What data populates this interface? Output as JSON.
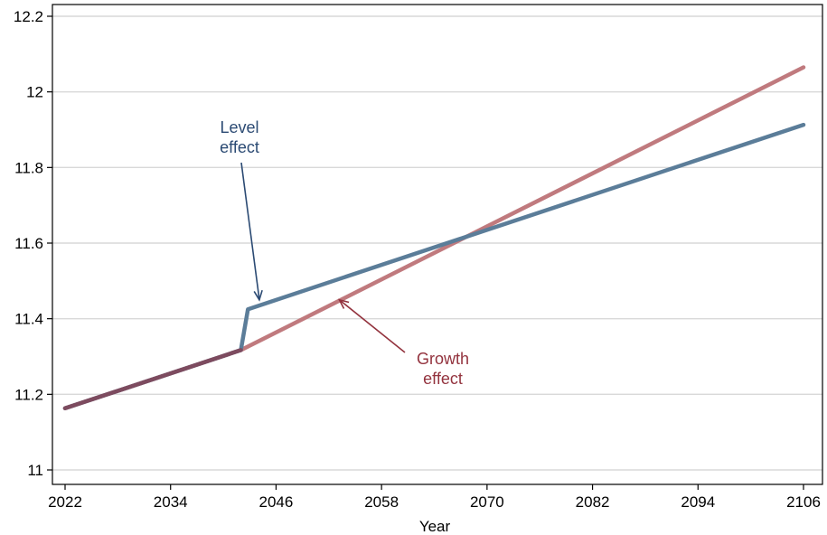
{
  "chart_data": {
    "type": "line",
    "title": "",
    "xlabel": "Year",
    "ylabel": "",
    "xlim": [
      2022,
      2106
    ],
    "ylim": [
      11,
      12.2
    ],
    "xticks": [
      "2022",
      "2034",
      "2046",
      "2058",
      "2070",
      "2082",
      "2094",
      "2106"
    ],
    "yticks": [
      "11",
      "11.2",
      "11.4",
      "11.6",
      "11.8",
      "12",
      "12.2"
    ],
    "grid": true,
    "series": [
      {
        "key": "level",
        "x": [
          2022,
          2042,
          2042.8,
          2106
        ],
        "y": [
          11.163,
          11.317,
          11.425,
          11.913
        ],
        "color": "#5b7d99"
      },
      {
        "key": "growth",
        "x": [
          2022,
          2042,
          2106
        ],
        "y": [
          11.163,
          11.317,
          12.065
        ],
        "color": "#c07a7e"
      }
    ],
    "overlap_color": "#7d4b5f",
    "annotations": [
      {
        "key": "level",
        "lines": [
          "Level",
          "effect"
        ],
        "color": "#2b4a73",
        "arrow_to": [
          2044.1,
          11.45
        ]
      },
      {
        "key": "growth",
        "lines": [
          "Growth",
          "effect"
        ],
        "color": "#93333e",
        "arrow_to": [
          2053.2,
          11.45
        ]
      }
    ]
  }
}
